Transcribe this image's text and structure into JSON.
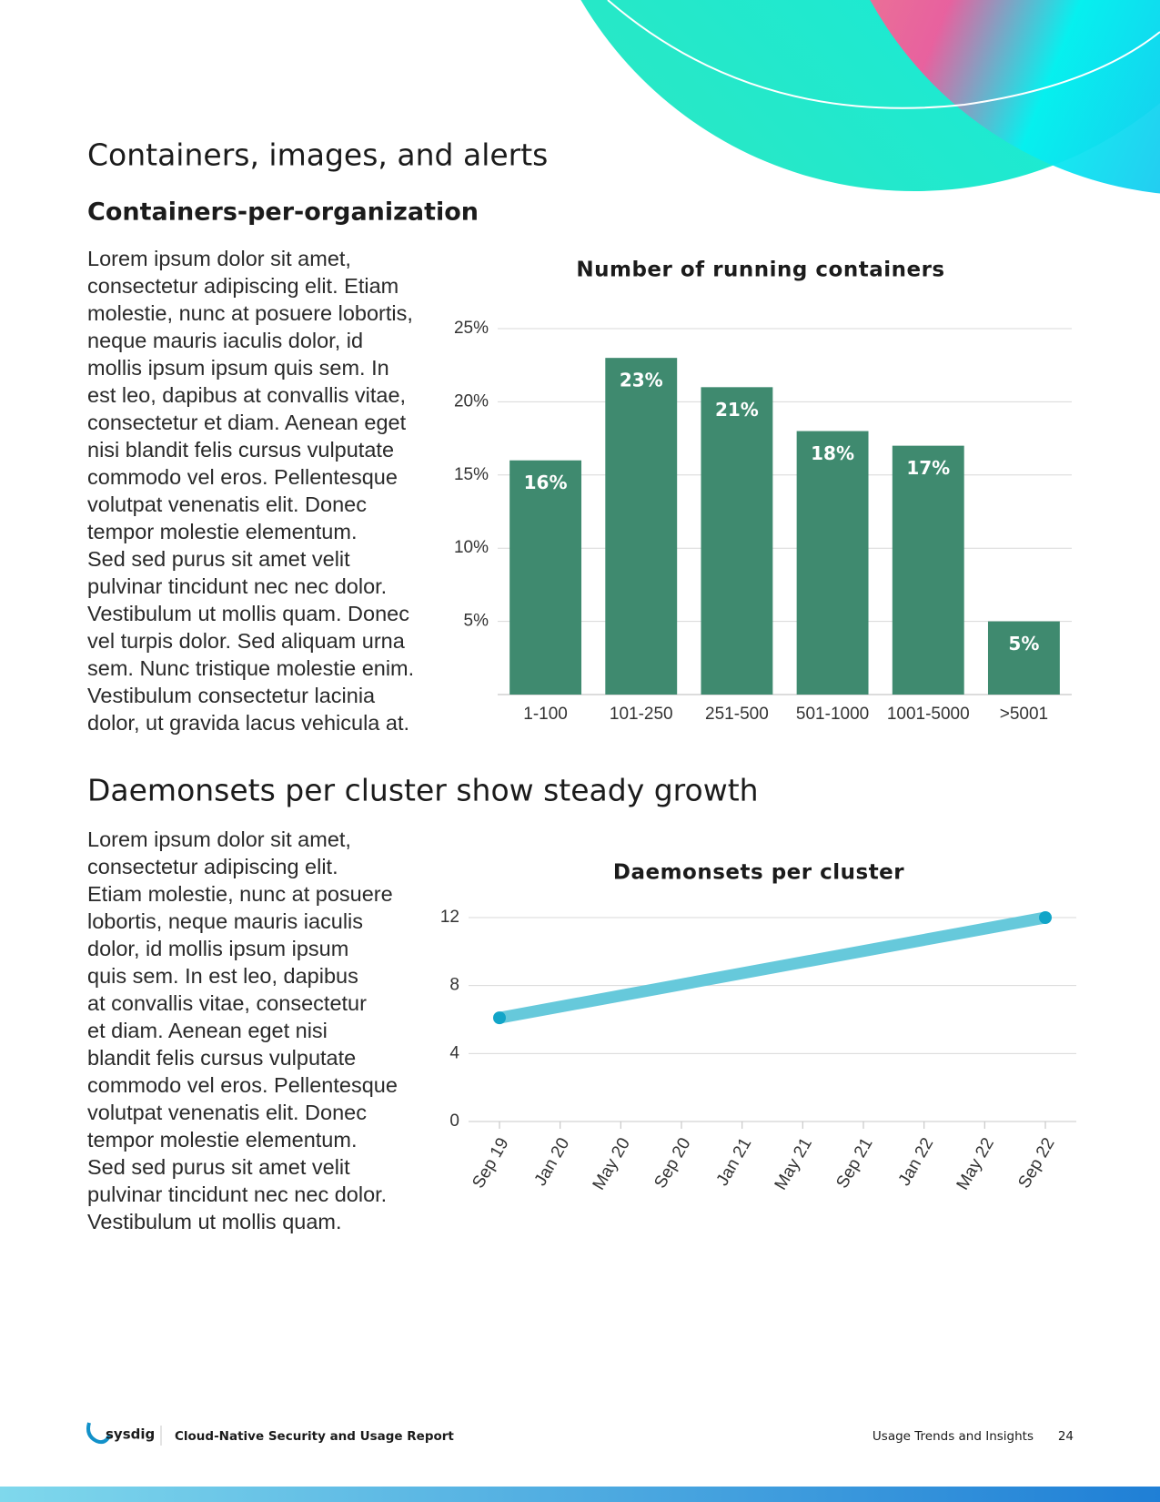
{
  "page": {
    "title": "Containers, images, and alerts",
    "subtitle": "Containers-per-organization",
    "paragraph1": [
      "Lorem ipsum dolor sit amet,",
      "consectetur adipiscing elit. Etiam",
      "molestie, nunc at posuere lobortis,",
      "neque mauris iaculis dolor, id",
      "mollis ipsum ipsum quis sem. In",
      "est leo, dapibus at convallis vitae,",
      "consectetur et diam. Aenean eget",
      "nisi blandit felis cursus vulputate",
      "commodo vel eros. Pellentesque",
      "volutpat venenatis elit. Donec",
      "tempor molestie elementum.",
      "Sed sed purus sit amet velit",
      "pulvinar tincidunt nec nec dolor.",
      "Vestibulum ut mollis quam. Donec",
      "vel turpis dolor. Sed aliquam urna",
      "sem. Nunc tristique molestie enim.",
      "Vestibulum consectetur lacinia",
      "dolor, ut gravida lacus vehicula at."
    ],
    "heading2": "Daemonsets per cluster show steady growth",
    "paragraph2": [
      "Lorem ipsum dolor sit amet,",
      "consectetur adipiscing elit.",
      "Etiam molestie, nunc at posuere",
      "lobortis, neque mauris iaculis",
      "dolor, id mollis ipsum ipsum",
      "quis sem. In est leo, dapibus",
      "at convallis vitae, consectetur",
      "et diam. Aenean eget nisi",
      "blandit felis cursus vulputate",
      "commodo vel eros. Pellentesque",
      "volutpat venenatis elit. Donec",
      "tempor molestie elementum.",
      "Sed sed purus sit amet velit",
      "pulvinar tincidunt nec nec dolor.",
      "Vestibulum ut mollis quam."
    ],
    "footer": {
      "brand": "sysdig",
      "report": "Cloud-Native Security and Usage Report",
      "section": "Usage Trends and Insights",
      "page_number": "24"
    }
  },
  "chart_data": [
    {
      "type": "bar",
      "title": "Number of running containers",
      "categories": [
        "1-100",
        "101-250",
        "251-500",
        "501-1000",
        "1001-5000",
        ">5001"
      ],
      "values": [
        16,
        23,
        21,
        18,
        17,
        5
      ],
      "value_labels": [
        "16%",
        "23%",
        "21%",
        "18%",
        "17%",
        "5%"
      ],
      "color": "#3f8a6f",
      "ylim": [
        0,
        25
      ],
      "yticks": [
        {
          "value": 5,
          "label": "5%"
        },
        {
          "value": 10,
          "label": "10%"
        },
        {
          "value": 15,
          "label": "15%"
        },
        {
          "value": 20,
          "label": "20%"
        },
        {
          "value": 25,
          "label": "25%"
        }
      ],
      "grid": true
    },
    {
      "type": "line",
      "title": "Daemonsets per cluster",
      "xticks": [
        "Sep 19",
        "Jan 20",
        "May 20",
        "Sep 20",
        "Jan 21",
        "May 21",
        "Sep 21",
        "Jan 22",
        "May 22",
        "Sep 22"
      ],
      "x": [
        "Sep 19",
        "Sep 22"
      ],
      "values": [
        6.1,
        12
      ],
      "color": "#66c9db",
      "marker_color": "#12a5c8",
      "ylim": [
        0,
        12
      ],
      "yticks": [
        0,
        4,
        8,
        12
      ],
      "grid": true
    }
  ]
}
